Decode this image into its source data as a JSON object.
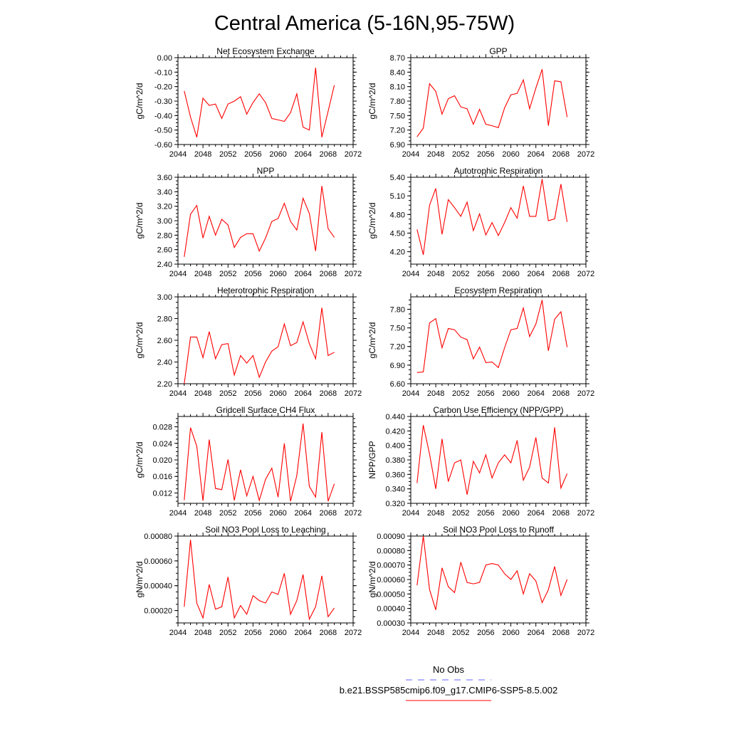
{
  "figure": {
    "title": "Central America (5-16N,95-75W)",
    "legend": [
      {
        "label": "No Obs",
        "color": "#6666ff",
        "dash": "dashed"
      },
      {
        "label": "b.e21.BSSP585cmip6.f09_g17.CMIP6-SSP5-8.5.002",
        "color": "#ff0000",
        "dash": "solid"
      }
    ]
  },
  "chart_data": [
    {
      "type": "line",
      "title": "Net Ecosystem Exchange",
      "ylabel": "gC/m^2/d",
      "xlim": [
        2044,
        2072
      ],
      "x_ticks": [
        "2044",
        "2048",
        "2052",
        "2056",
        "2060",
        "2064",
        "2068",
        "2072"
      ],
      "ylim": [
        -0.6,
        0.0
      ],
      "y_ticks": [
        "-0.60",
        "-0.50",
        "-0.40",
        "-0.30",
        "-0.20",
        "-0.10",
        "0.00"
      ],
      "series": [
        {
          "color": "#ff0000",
          "x": [
            2045,
            2046,
            2047,
            2048,
            2049,
            2050,
            2051,
            2052,
            2053,
            2054,
            2055,
            2056,
            2057,
            2058,
            2059,
            2060,
            2061,
            2062,
            2063,
            2064,
            2065,
            2066,
            2067,
            2068,
            2069
          ],
          "values": [
            -0.23,
            -0.41,
            -0.55,
            -0.28,
            -0.33,
            -0.32,
            -0.42,
            -0.32,
            -0.3,
            -0.27,
            -0.39,
            -0.31,
            -0.25,
            -0.31,
            -0.42,
            -0.43,
            -0.44,
            -0.38,
            -0.25,
            -0.48,
            -0.5,
            -0.07,
            -0.55,
            -0.37,
            -0.19
          ]
        }
      ]
    },
    {
      "type": "line",
      "title": "GPP",
      "ylabel": "gC/m^2/d",
      "xlim": [
        2044,
        2072
      ],
      "x_ticks": [
        "2044",
        "2048",
        "2052",
        "2056",
        "2060",
        "2064",
        "2068",
        "2072"
      ],
      "ylim": [
        6.9,
        8.7
      ],
      "y_ticks": [
        "6.90",
        "7.20",
        "7.50",
        "7.80",
        "8.10",
        "8.40",
        "8.70"
      ],
      "series": [
        {
          "color": "#ff0000",
          "x": [
            2045,
            2046,
            2047,
            2048,
            2049,
            2050,
            2051,
            2052,
            2053,
            2054,
            2055,
            2056,
            2057,
            2058,
            2059,
            2060,
            2061,
            2062,
            2063,
            2064,
            2065,
            2066,
            2067,
            2068,
            2069
          ],
          "values": [
            7.06,
            7.24,
            8.16,
            8.0,
            7.53,
            7.85,
            7.91,
            7.68,
            7.64,
            7.32,
            7.63,
            7.32,
            7.29,
            7.25,
            7.66,
            7.93,
            7.96,
            8.24,
            7.64,
            8.07,
            8.46,
            7.29,
            8.22,
            8.2,
            7.47
          ]
        }
      ]
    },
    {
      "type": "line",
      "title": "NPP",
      "ylabel": "gC/m^2/d",
      "xlim": [
        2044,
        2072
      ],
      "x_ticks": [
        "2044",
        "2048",
        "2052",
        "2056",
        "2060",
        "2064",
        "2068",
        "2072"
      ],
      "ylim": [
        2.4,
        3.6
      ],
      "y_ticks": [
        "2.40",
        "2.60",
        "2.80",
        "3.00",
        "3.20",
        "3.40",
        "3.60"
      ],
      "series": [
        {
          "color": "#ff0000",
          "x": [
            2045,
            2046,
            2047,
            2048,
            2049,
            2050,
            2051,
            2052,
            2053,
            2054,
            2055,
            2056,
            2057,
            2058,
            2059,
            2060,
            2061,
            2062,
            2063,
            2064,
            2065,
            2066,
            2067,
            2068,
            2069
          ],
          "values": [
            2.5,
            3.09,
            3.21,
            2.76,
            3.06,
            2.8,
            3.02,
            2.94,
            2.63,
            2.77,
            2.82,
            2.82,
            2.58,
            2.76,
            2.99,
            3.03,
            3.24,
            2.99,
            2.87,
            3.31,
            3.1,
            2.58,
            3.48,
            2.89,
            2.77
          ]
        }
      ]
    },
    {
      "type": "line",
      "title": "Autotrophic Respiration",
      "ylabel": "gC/m^2/d",
      "xlim": [
        2044,
        2072
      ],
      "x_ticks": [
        "2044",
        "2048",
        "2052",
        "2056",
        "2060",
        "2064",
        "2068",
        "2072"
      ],
      "ylim": [
        4.0,
        5.4
      ],
      "y_ticks": [
        "4.20",
        "4.50",
        "4.80",
        "5.10",
        "5.40"
      ],
      "series": [
        {
          "color": "#ff0000",
          "x": [
            2045,
            2046,
            2047,
            2048,
            2049,
            2050,
            2051,
            2052,
            2053,
            2054,
            2055,
            2056,
            2057,
            2058,
            2059,
            2060,
            2061,
            2062,
            2063,
            2064,
            2065,
            2066,
            2067,
            2068,
            2069
          ],
          "values": [
            4.56,
            4.15,
            4.95,
            5.22,
            4.48,
            5.04,
            4.91,
            4.77,
            5.0,
            4.54,
            4.81,
            4.47,
            4.67,
            4.46,
            4.67,
            4.91,
            4.74,
            5.26,
            4.77,
            4.77,
            5.37,
            4.7,
            4.73,
            5.29,
            4.68
          ]
        }
      ]
    },
    {
      "type": "line",
      "title": "Heterotrophic Respiration",
      "ylabel": "gC/m^2/d",
      "xlim": [
        2044,
        2072
      ],
      "x_ticks": [
        "2044",
        "2048",
        "2052",
        "2056",
        "2060",
        "2064",
        "2068",
        "2072"
      ],
      "ylim": [
        2.2,
        3.0
      ],
      "y_ticks": [
        "2.20",
        "2.40",
        "2.60",
        "2.80",
        "3.00"
      ],
      "series": [
        {
          "color": "#ff0000",
          "x": [
            2045,
            2046,
            2047,
            2048,
            2049,
            2050,
            2051,
            2052,
            2053,
            2054,
            2055,
            2056,
            2057,
            2058,
            2059,
            2060,
            2061,
            2062,
            2063,
            2064,
            2065,
            2066,
            2067,
            2068,
            2069
          ],
          "values": [
            2.2,
            2.63,
            2.63,
            2.44,
            2.68,
            2.43,
            2.56,
            2.57,
            2.28,
            2.46,
            2.39,
            2.46,
            2.26,
            2.4,
            2.5,
            2.54,
            2.75,
            2.55,
            2.58,
            2.77,
            2.57,
            2.43,
            2.9,
            2.46,
            2.49
          ]
        }
      ]
    },
    {
      "type": "line",
      "title": "Ecosystem Respiration",
      "ylabel": "gC/m^2/d",
      "xlim": [
        2044,
        2072
      ],
      "x_ticks": [
        "2044",
        "2048",
        "2052",
        "2056",
        "2060",
        "2064",
        "2068",
        "2072"
      ],
      "ylim": [
        6.6,
        8.0
      ],
      "y_ticks": [
        "6.60",
        "6.90",
        "7.20",
        "7.50",
        "7.80"
      ],
      "series": [
        {
          "color": "#ff0000",
          "x": [
            2045,
            2046,
            2047,
            2048,
            2049,
            2050,
            2051,
            2052,
            2053,
            2054,
            2055,
            2056,
            2057,
            2058,
            2059,
            2060,
            2061,
            2062,
            2063,
            2064,
            2065,
            2066,
            2067,
            2068,
            2069
          ],
          "values": [
            6.78,
            6.79,
            7.58,
            7.65,
            7.18,
            7.49,
            7.47,
            7.35,
            7.31,
            7.0,
            7.19,
            6.94,
            6.95,
            6.86,
            7.18,
            7.47,
            7.49,
            7.82,
            7.36,
            7.56,
            7.95,
            7.13,
            7.64,
            7.76,
            7.19
          ]
        }
      ]
    },
    {
      "type": "line",
      "title": "Gridcell Surface CH4 Flux",
      "ylabel": "gC/m^2/d",
      "xlim": [
        2044,
        2072
      ],
      "x_ticks": [
        "2044",
        "2048",
        "2052",
        "2056",
        "2060",
        "2064",
        "2068",
        "2072"
      ],
      "ylim": [
        0.0095,
        0.0305
      ],
      "y_ticks": [
        "0.012",
        "0.016",
        "0.020",
        "0.024",
        "0.028"
      ],
      "series": [
        {
          "color": "#ff0000",
          "x": [
            2045,
            2046,
            2047,
            2048,
            2049,
            2050,
            2051,
            2052,
            2053,
            2054,
            2055,
            2056,
            2057,
            2058,
            2059,
            2060,
            2061,
            2062,
            2063,
            2064,
            2065,
            2066,
            2067,
            2068,
            2069
          ],
          "values": [
            0.0103,
            0.0278,
            0.0233,
            0.0101,
            0.0249,
            0.0131,
            0.0128,
            0.0201,
            0.0102,
            0.0176,
            0.0113,
            0.016,
            0.0102,
            0.0153,
            0.018,
            0.011,
            0.024,
            0.01,
            0.0162,
            0.0288,
            0.0136,
            0.011,
            0.0267,
            0.01,
            0.0142
          ]
        }
      ]
    },
    {
      "type": "line",
      "title": "Carbon Use Efficiency (NPP/GPP)",
      "ylabel": "NPP/GPP",
      "xlim": [
        2044,
        2072
      ],
      "x_ticks": [
        "2044",
        "2048",
        "2052",
        "2056",
        "2060",
        "2064",
        "2068",
        "2072"
      ],
      "ylim": [
        0.32,
        0.44
      ],
      "y_ticks": [
        "0.320",
        "0.340",
        "0.360",
        "0.380",
        "0.400",
        "0.420",
        "0.440"
      ],
      "series": [
        {
          "color": "#ff0000",
          "x": [
            2045,
            2046,
            2047,
            2048,
            2049,
            2050,
            2051,
            2052,
            2053,
            2054,
            2055,
            2056,
            2057,
            2058,
            2059,
            2060,
            2061,
            2062,
            2063,
            2064,
            2065,
            2066,
            2067,
            2068,
            2069
          ],
          "values": [
            0.348,
            0.428,
            0.388,
            0.34,
            0.409,
            0.35,
            0.376,
            0.38,
            0.332,
            0.378,
            0.362,
            0.387,
            0.355,
            0.376,
            0.387,
            0.376,
            0.407,
            0.352,
            0.37,
            0.411,
            0.355,
            0.348,
            0.425,
            0.341,
            0.361
          ]
        }
      ]
    },
    {
      "type": "line",
      "title": "Soil NO3 Pool Loss to Leaching",
      "ylabel": "gN/m^2/d",
      "xlim": [
        2044,
        2072
      ],
      "x_ticks": [
        "2044",
        "2048",
        "2052",
        "2056",
        "2060",
        "2064",
        "2068",
        "2072"
      ],
      "ylim": [
        0.0001,
        0.0008
      ],
      "y_ticks": [
        "0.00020",
        "0.00040",
        "0.00060",
        "0.00080"
      ],
      "series": [
        {
          "color": "#ff0000",
          "x": [
            2045,
            2046,
            2047,
            2048,
            2049,
            2050,
            2051,
            2052,
            2053,
            2054,
            2055,
            2056,
            2057,
            2058,
            2059,
            2060,
            2061,
            2062,
            2063,
            2064,
            2065,
            2066,
            2067,
            2068,
            2069
          ],
          "values": [
            0.00023,
            0.00077,
            0.00026,
            0.00014,
            0.00041,
            0.00021,
            0.00023,
            0.00047,
            0.00014,
            0.00024,
            0.00017,
            0.00032,
            0.00028,
            0.00026,
            0.00035,
            0.00033,
            0.0005,
            0.00017,
            0.00028,
            0.00049,
            0.00013,
            0.00023,
            0.00048,
            0.00015,
            0.00022
          ]
        }
      ]
    },
    {
      "type": "line",
      "title": "Soil NO3 Pool Loss to Runoff",
      "ylabel": "gN/m^2/d",
      "xlim": [
        2044,
        2072
      ],
      "x_ticks": [
        "2044",
        "2048",
        "2052",
        "2056",
        "2060",
        "2064",
        "2068",
        "2072"
      ],
      "ylim": [
        0.0003,
        0.0009
      ],
      "y_ticks": [
        "0.00030",
        "0.00040",
        "0.00050",
        "0.00060",
        "0.00070",
        "0.00080",
        "0.00090"
      ],
      "series": [
        {
          "color": "#ff0000",
          "x": [
            2045,
            2046,
            2047,
            2048,
            2049,
            2050,
            2051,
            2052,
            2053,
            2054,
            2055,
            2056,
            2057,
            2058,
            2059,
            2060,
            2061,
            2062,
            2063,
            2064,
            2065,
            2066,
            2067,
            2068,
            2069
          ],
          "values": [
            0.00056,
            0.0009,
            0.00053,
            0.00039,
            0.00068,
            0.00055,
            0.00051,
            0.00072,
            0.00058,
            0.00057,
            0.00058,
            0.0007,
            0.00071,
            0.0007,
            0.00064,
            0.0006,
            0.00066,
            0.0005,
            0.00064,
            0.00059,
            0.00044,
            0.00053,
            0.00069,
            0.00049,
            0.0006
          ]
        }
      ]
    }
  ]
}
